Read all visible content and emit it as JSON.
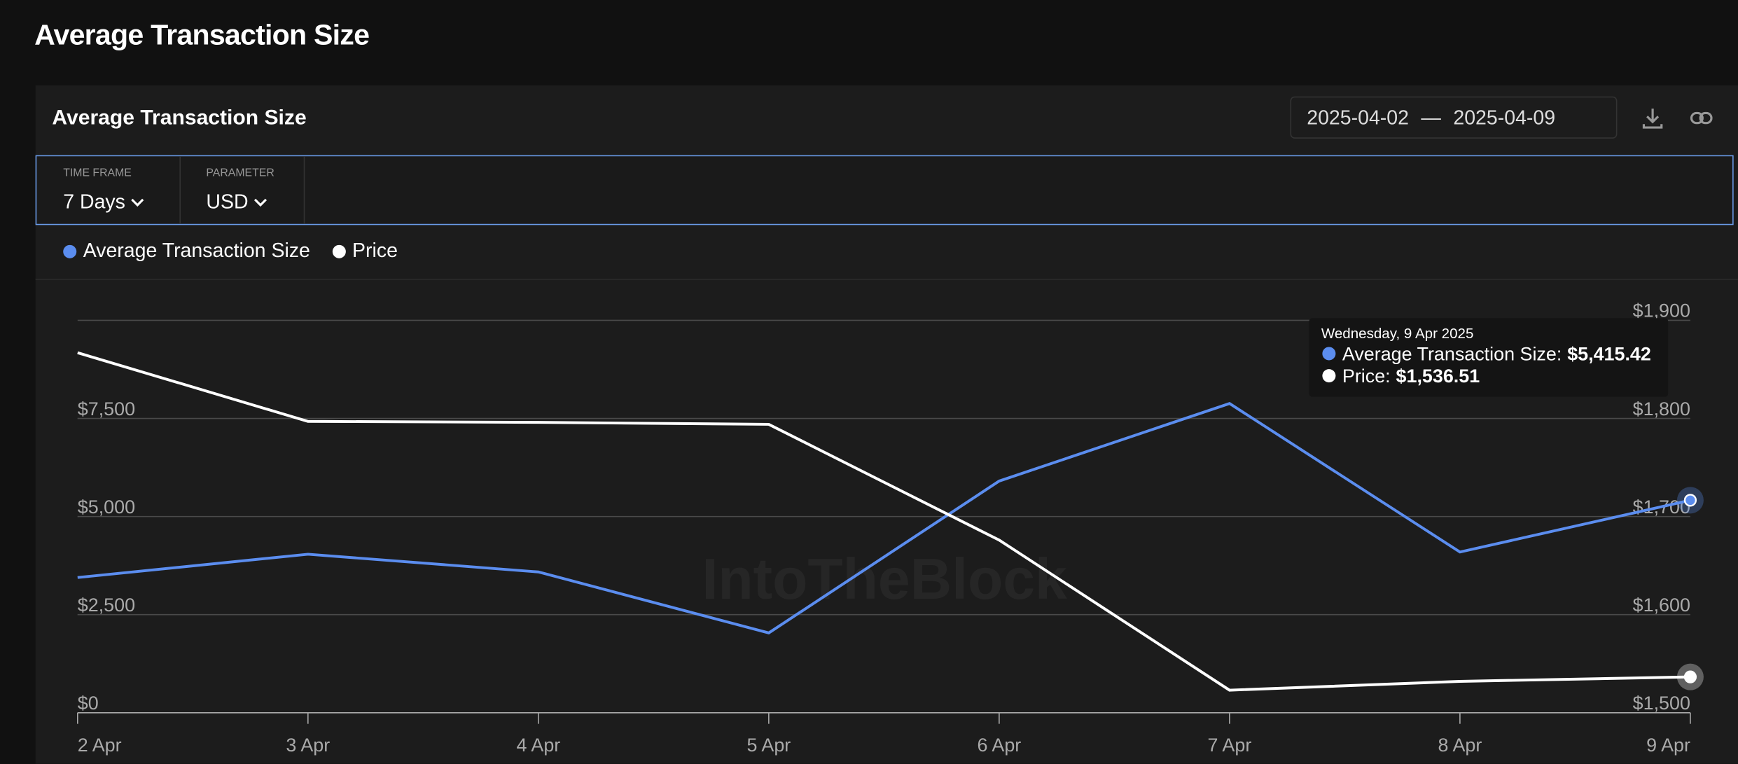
{
  "page_title": "Average Transaction Size",
  "date_range": {
    "start": "2025-04-02",
    "separator": "—",
    "end": "2025-04-09"
  },
  "filters": [
    {
      "label": "TIME FRAME",
      "value": "7 Days"
    },
    {
      "label": "PARAMETER",
      "value": "USD"
    }
  ],
  "watermark": "IntoTheBlock",
  "chart_data": {
    "type": "line",
    "title": "Average Transaction Size",
    "categories": [
      "2 Apr",
      "3 Apr",
      "4 Apr",
      "5 Apr",
      "6 Apr",
      "7 Apr",
      "8 Apr",
      "9 Apr"
    ],
    "series": [
      {
        "name": "Average Transaction Size",
        "color": "#5b8def",
        "values": [
          3446,
          4040,
          3588,
          2034,
          5904,
          7881,
          4096,
          5415.42
        ]
      },
      {
        "name": "Price",
        "color": "#ffffff",
        "axis": "y2",
        "values": [
          1867,
          1797,
          1796,
          1794,
          1676,
          1523,
          1532,
          1536.51
        ]
      }
    ],
    "ylim": [
      0,
      10000
    ],
    "yticks": [
      {
        "value": 0,
        "label": "$0"
      },
      {
        "value": 2500,
        "label": "$2,500"
      },
      {
        "value": 5000,
        "label": "$5,000"
      },
      {
        "value": 7500,
        "label": "$7,500"
      }
    ],
    "y2lim": [
      1500,
      1900
    ],
    "y2ticks": [
      {
        "value": 1500,
        "label": "$1,500"
      },
      {
        "value": 1600,
        "label": "$1,600"
      },
      {
        "value": 1700,
        "label": "$1,700"
      },
      {
        "value": 1800,
        "label": "$1,800"
      },
      {
        "value": 1900,
        "label": "$1,900"
      }
    ],
    "grid": true,
    "tooltip": {
      "title": "Wednesday, 9 Apr 2025",
      "entries": [
        {
          "label": "Average Transaction Size:",
          "value": "$5,415.42"
        },
        {
          "label": "Price:",
          "value": "$1,536.51"
        }
      ]
    }
  }
}
